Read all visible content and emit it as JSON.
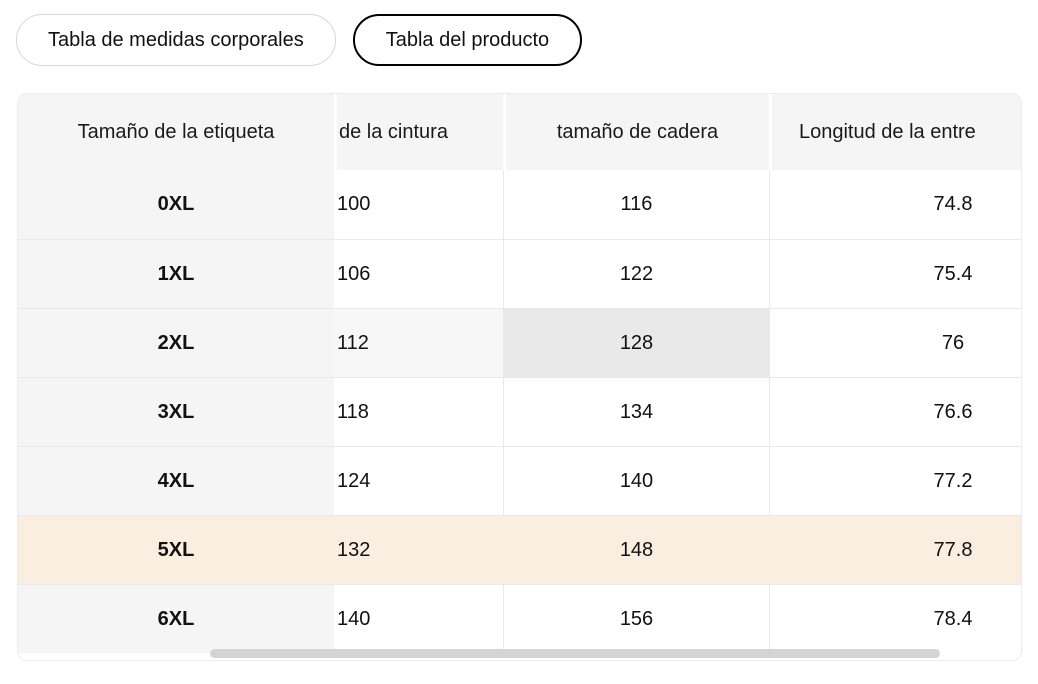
{
  "tabs": [
    {
      "label": "Tabla de medidas corporales",
      "active": false
    },
    {
      "label": "Tabla del producto",
      "active": true
    }
  ],
  "table": {
    "columns": {
      "label_size": "Tamaño de la etiqueta",
      "waist_size_clipped": "de la cintura",
      "hip_size": "tamaño de cadera",
      "inseam_length_clipped": "Longitud de la entre"
    },
    "rows": [
      {
        "label": "0XL",
        "values": [
          "100",
          "116",
          "74.8"
        ]
      },
      {
        "label": "1XL",
        "values": [
          "106",
          "122",
          "75.4"
        ]
      },
      {
        "label": "2XL",
        "values": [
          "112",
          "128",
          "76"
        ]
      },
      {
        "label": "3XL",
        "values": [
          "118",
          "134",
          "76.6"
        ]
      },
      {
        "label": "4XL",
        "values": [
          "124",
          "140",
          "77.2"
        ]
      },
      {
        "label": "5XL",
        "values": [
          "132",
          "148",
          "77.8"
        ]
      },
      {
        "label": "6XL",
        "values": [
          "140",
          "156",
          "78.4"
        ]
      }
    ],
    "hovered": {
      "row": "2XL",
      "column": "tamaño de cadera",
      "value": "128"
    },
    "selected_row": "5XL",
    "horizontal_scrollbar": true
  },
  "colors": {
    "header_bg": "#f5f5f5",
    "sticky_col_bg": "#f5f5f5",
    "border": "#e9e9e9",
    "hover_row_bg": "#f7f7f7",
    "hover_cell_bg": "#e9e9e9",
    "selected_row_bg": "#faeee0",
    "scrollbar_thumb": "#d4d4d4",
    "active_tab_border": "#000000",
    "inactive_tab_border": "#d8d8d8"
  }
}
